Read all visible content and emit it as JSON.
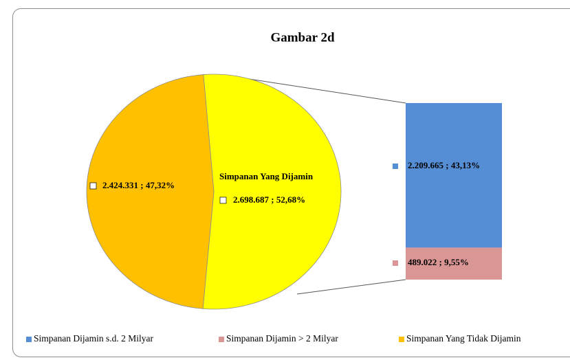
{
  "chart_data": {
    "type": "pie",
    "title": "Gambar 2d",
    "categories": [
      "Simpanan Yang Tidak Dijamin",
      "Simpanan Yang Dijamin"
    ],
    "values": [
      2424331,
      2698687
    ],
    "value_labels": [
      "2.424.331 ; 47,32%",
      "2.698.687 ; 52,68%"
    ],
    "colors": [
      "#ffc000",
      "#ffff00"
    ],
    "breakdown": {
      "type": "bar",
      "categories": [
        "Simpanan Dijamin s.d. 2 Milyar",
        "Simpanan Dijamin > 2 Milyar"
      ],
      "values": [
        2209665,
        489022
      ],
      "value_labels": [
        "2.209.665 ; 43,13%",
        "489.022 ; 9,55%"
      ],
      "colors": [
        "#558ed5",
        "#d99694"
      ]
    }
  }
}
